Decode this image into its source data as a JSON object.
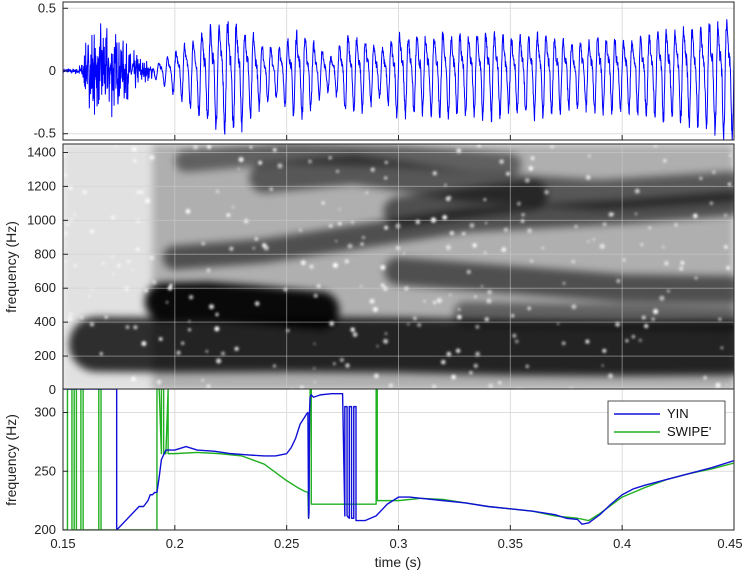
{
  "chart_data": [
    {
      "type": "line",
      "panel": "waveform",
      "xlim": [
        0.15,
        0.45
      ],
      "ylim": [
        -0.55,
        0.55
      ],
      "y_ticks": [
        0.5,
        0,
        -0.5
      ],
      "y_tick_labels": [
        "0.5",
        "0",
        "-0.5"
      ],
      "grid": true,
      "color": "#0000ff",
      "envelope": {
        "x": [
          0.15,
          0.157,
          0.16,
          0.163,
          0.17,
          0.178,
          0.186,
          0.192,
          0.197,
          0.203,
          0.21,
          0.218,
          0.225,
          0.232,
          0.24,
          0.247,
          0.255,
          0.262,
          0.27,
          0.277,
          0.285,
          0.292,
          0.3,
          0.31,
          0.32,
          0.33,
          0.34,
          0.35,
          0.36,
          0.37,
          0.38,
          0.39,
          0.4,
          0.41,
          0.42,
          0.43,
          0.44,
          0.45
        ],
        "amp": [
          0.02,
          0.03,
          0.22,
          0.38,
          0.42,
          0.28,
          0.1,
          0.06,
          0.12,
          0.22,
          0.3,
          0.4,
          0.44,
          0.38,
          0.22,
          0.2,
          0.35,
          0.25,
          0.12,
          0.3,
          0.28,
          0.18,
          0.32,
          0.3,
          0.33,
          0.3,
          0.35,
          0.28,
          0.33,
          0.3,
          0.25,
          0.3,
          0.28,
          0.32,
          0.35,
          0.38,
          0.42,
          0.48
        ]
      },
      "f0_hz": 260
    },
    {
      "type": "heatmap",
      "panel": "spectrogram",
      "xlim": [
        0.15,
        0.45
      ],
      "ylim": [
        0,
        1450
      ],
      "y_ticks": [
        0,
        200,
        400,
        600,
        800,
        1000,
        1200,
        1400
      ],
      "y_tick_labels": [
        "0",
        "200",
        "400",
        "600",
        "800",
        "1000",
        "1200",
        "1400"
      ],
      "ylabel": "frequency (Hz)",
      "colormap": "gray",
      "grid": true
    },
    {
      "type": "line",
      "panel": "pitch",
      "xlim": [
        0.15,
        0.45
      ],
      "ylim": [
        200,
        320
      ],
      "x_ticks": [
        0.15,
        0.2,
        0.25,
        0.3,
        0.35,
        0.4,
        0.45
      ],
      "x_tick_labels": [
        "0.15",
        "0.2",
        "0.25",
        "0.3",
        "0.35",
        "0.4",
        "0.45"
      ],
      "y_ticks": [
        200,
        250,
        300
      ],
      "y_tick_labels": [
        "200",
        "250",
        "300"
      ],
      "xlabel": "time (s)",
      "ylabel": "frequency (Hz)",
      "grid": true,
      "legend": "top-right",
      "series": [
        {
          "name": "YIN",
          "color": "#1010d8",
          "x": [
            0.15,
            0.15,
            0.174,
            0.174,
            0.174,
            0.174,
            0.184,
            0.186,
            0.188,
            0.189,
            0.19,
            0.191,
            0.192,
            0.193,
            0.194,
            0.196,
            0.2,
            0.205,
            0.21,
            0.218,
            0.225,
            0.232,
            0.24,
            0.245,
            0.25,
            0.252,
            0.254,
            0.256,
            0.258,
            0.259,
            0.2595,
            0.2598,
            0.26,
            0.2602,
            0.2605,
            0.261,
            0.262,
            0.265,
            0.27,
            0.275,
            0.276,
            0.276,
            0.277,
            0.277,
            0.278,
            0.278,
            0.279,
            0.279,
            0.28,
            0.28,
            0.281,
            0.281,
            0.282,
            0.285,
            0.29,
            0.295,
            0.3,
            0.305,
            0.31,
            0.32,
            0.33,
            0.34,
            0.35,
            0.36,
            0.37,
            0.375,
            0.38,
            0.382,
            0.385,
            0.39,
            0.395,
            0.4,
            0.405,
            0.41,
            0.42,
            0.43,
            0.44,
            0.45
          ],
          "y": [
            320,
            320,
            320,
            320,
            200,
            200,
            220,
            220,
            225,
            230,
            230,
            232,
            232,
            245,
            260,
            268,
            268,
            271,
            268,
            267,
            265,
            264,
            263,
            263,
            265,
            270,
            278,
            290,
            296,
            299,
            300,
            210,
            215,
            300,
            313,
            315,
            313,
            315,
            316,
            316,
            212,
            305,
            305,
            212,
            210,
            305,
            305,
            210,
            210,
            305,
            305,
            208,
            208,
            208,
            212,
            222,
            228,
            228,
            227,
            225,
            223,
            220,
            218,
            216,
            213,
            210,
            209,
            205,
            206,
            213,
            222,
            230,
            235,
            238,
            243,
            248,
            253,
            259
          ]
        },
        {
          "name": "SWIPE'",
          "color": "#20b020",
          "x": [
            0.15,
            0.152,
            0.152,
            0.154,
            0.154,
            0.155,
            0.155,
            0.156,
            0.156,
            0.158,
            0.158,
            0.159,
            0.159,
            0.162,
            0.162,
            0.166,
            0.166,
            0.167,
            0.167,
            0.192,
            0.192,
            0.193,
            0.194,
            0.194,
            0.195,
            0.195,
            0.196,
            0.197,
            0.197,
            0.2,
            0.21,
            0.22,
            0.23,
            0.24,
            0.25,
            0.255,
            0.258,
            0.2595,
            0.2598,
            0.2605,
            0.2605,
            0.261,
            0.261,
            0.265,
            0.28,
            0.285,
            0.29,
            0.29,
            0.2905,
            0.2905,
            0.292,
            0.3,
            0.31,
            0.32,
            0.33,
            0.34,
            0.35,
            0.36,
            0.37,
            0.38,
            0.385,
            0.39,
            0.4,
            0.41,
            0.42,
            0.43,
            0.44,
            0.45
          ],
          "y": [
            200,
            200,
            320,
            320,
            200,
            200,
            320,
            320,
            200,
            200,
            320,
            320,
            200,
            200,
            200,
            200,
            320,
            320,
            200,
            200,
            320,
            320,
            265,
            320,
            320,
            265,
            265,
            320,
            265,
            265,
            266,
            265,
            263,
            256,
            242,
            236,
            233,
            232,
            210,
            320,
            320,
            320,
            222,
            222,
            222,
            222,
            222,
            320,
            320,
            225,
            225,
            225,
            227,
            226,
            223,
            220,
            218,
            216,
            212,
            210,
            208,
            214,
            228,
            236,
            243,
            248,
            252,
            257
          ]
        }
      ]
    }
  ]
}
